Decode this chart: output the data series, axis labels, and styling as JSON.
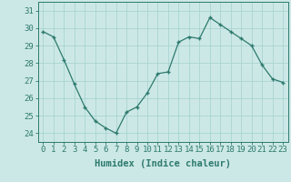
{
  "x": [
    0,
    1,
    2,
    3,
    4,
    5,
    6,
    7,
    8,
    9,
    10,
    11,
    12,
    13,
    14,
    15,
    16,
    17,
    18,
    19,
    20,
    21,
    22,
    23
  ],
  "y": [
    29.8,
    29.5,
    28.2,
    26.8,
    25.5,
    24.7,
    24.3,
    24.0,
    25.2,
    25.5,
    26.3,
    27.4,
    27.5,
    29.2,
    29.5,
    29.4,
    30.6,
    30.2,
    29.8,
    29.4,
    29.0,
    27.9,
    27.1,
    26.9
  ],
  "line_color": "#2d7a6e",
  "marker": "+",
  "bg_color": "#cce8e6",
  "grid_color": "#a8d4d2",
  "axis_color": "#2d7a6e",
  "xlabel": "Humidex (Indice chaleur)",
  "ylim": [
    23.5,
    31.5
  ],
  "xlim": [
    -0.5,
    23.5
  ],
  "yticks": [
    24,
    25,
    26,
    27,
    28,
    29,
    30,
    31
  ],
  "xticks": [
    0,
    1,
    2,
    3,
    4,
    5,
    6,
    7,
    8,
    9,
    10,
    11,
    12,
    13,
    14,
    15,
    16,
    17,
    18,
    19,
    20,
    21,
    22,
    23
  ],
  "font_color": "#2d7a6e",
  "font_size": 6.5,
  "xlabel_fontsize": 7.5
}
